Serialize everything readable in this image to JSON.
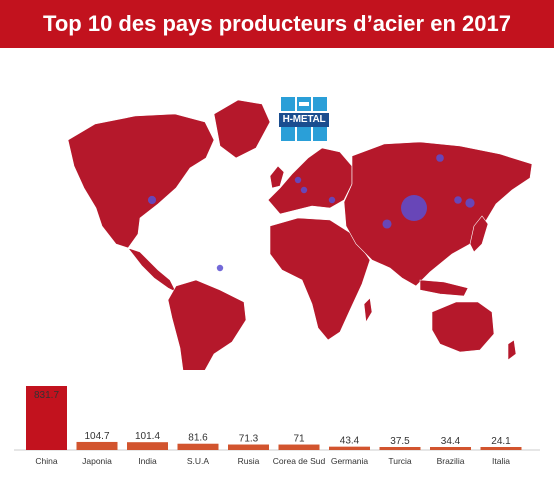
{
  "header": {
    "title": "Top 10 des pays producteurs d’acier en 2017"
  },
  "logo": {
    "text": "H-METAL",
    "icon": "h-metal-logo"
  },
  "colors": {
    "header": "#c2121e",
    "land": "#b5182b",
    "bubble": "#5b4fd1",
    "bar_top": "#c2121e",
    "bar_other": "#d2542e"
  },
  "map": {
    "bubbles": [
      {
        "country": "China",
        "value": 831.7
      },
      {
        "country": "Japonia",
        "value": 104.7
      },
      {
        "country": "India",
        "value": 101.4
      },
      {
        "country": "S.U.A",
        "value": 81.6
      },
      {
        "country": "Rusia",
        "value": 71.3
      },
      {
        "country": "Corea de Sud",
        "value": 71
      },
      {
        "country": "Germania",
        "value": 43.4
      },
      {
        "country": "Turcia",
        "value": 37.5
      },
      {
        "country": "Brazilia",
        "value": 34.4
      },
      {
        "country": "Italia",
        "value": 24.1
      }
    ]
  },
  "chart_data": {
    "type": "bar",
    "categories": [
      "China",
      "Japonia",
      "India",
      "S.U.A",
      "Rusia",
      "Corea de Sud",
      "Germania",
      "Turcia",
      "Brazilia",
      "Italia"
    ],
    "values": [
      831.7,
      104.7,
      101.4,
      81.6,
      71.3,
      71,
      43.4,
      37.5,
      34.4,
      24.1
    ],
    "value_labels": [
      "831.7",
      "104.7",
      "101.4",
      "81.6",
      "71.3",
      "71",
      "43.4",
      "37.5",
      "34.4",
      "24.1"
    ],
    "title": "Top 10 des pays producteurs d’acier en 2017",
    "ylim": [
      0,
      831.7
    ],
    "grid": false,
    "legend": "none"
  }
}
